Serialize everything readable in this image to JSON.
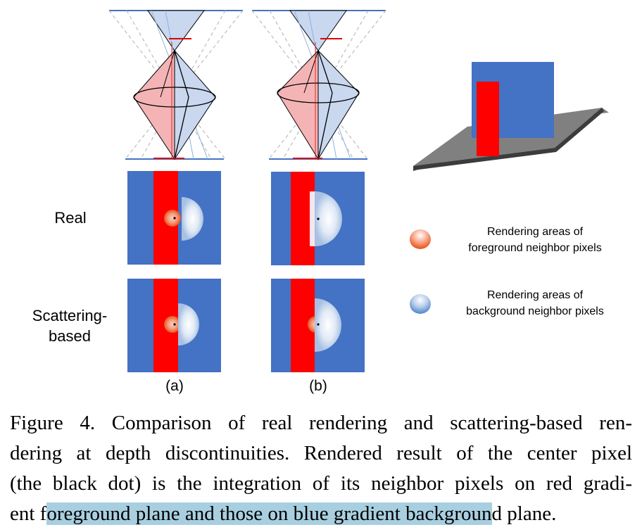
{
  "row_labels": {
    "real": "Real",
    "scattering_line1": "Scattering-",
    "scattering_line2": "based"
  },
  "column_labels": [
    "(a)",
    "(b)"
  ],
  "legend": {
    "foreground_line1": "Rendering areas of",
    "foreground_line2": "foreground neighbor pixels",
    "background_line1": "Rendering areas of",
    "background_line2": "background neighbor pixels"
  },
  "caption": {
    "line1": "Figure 4. Comparison of real rendering and scattering-based ren-",
    "line2": "dering at depth discontinuities. Rendered result of the center pixel",
    "line3": "(the black dot) is the integration of its neighbor pixels on red gradi-",
    "line4_pre": "ent f",
    "line4_highlight": "oreground plane and those on blue gradient backgroun",
    "line4_post": "d plane."
  },
  "colors": {
    "blue_plane": "#4472c4",
    "red_plane": "#ff0000",
    "ground": "#808080",
    "highlight": "#a8cfe0"
  }
}
